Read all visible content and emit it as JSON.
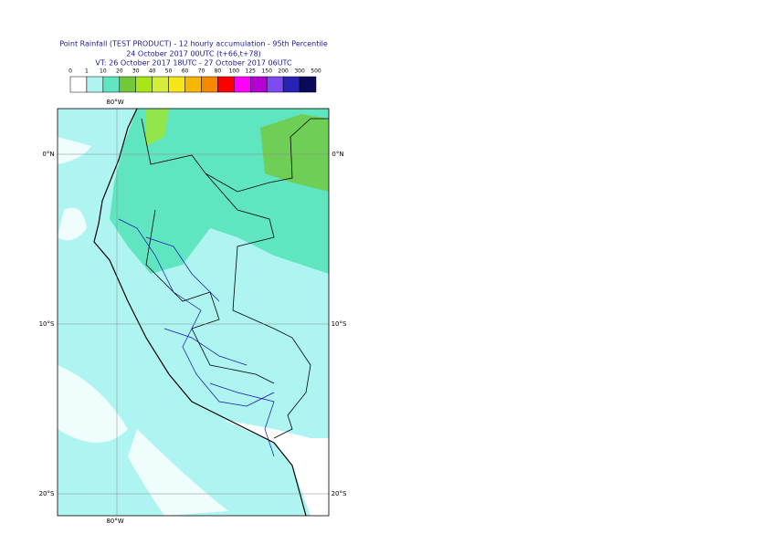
{
  "header": {
    "title": "Point Rainfall (TEST PRODUCT) - 12 hourly accumulation - 95th Percentile",
    "subtitle": "24 October 2017 00UTC (t+66,t+78)",
    "valid_time": "VT: 26 October 2017 18UTC - 27 October 2017 06UTC"
  },
  "legend": {
    "labels": [
      "0",
      "1",
      "10",
      "20",
      "30",
      "40",
      "50",
      "60",
      "70",
      "80",
      "100",
      "125",
      "150",
      "200",
      "300",
      "500"
    ],
    "colors": [
      "#ffffff",
      "#aef5f2",
      "#5fe6c0",
      "#73c83a",
      "#a8e619",
      "#d4ec3a",
      "#f5e617",
      "#f5b700",
      "#f58a00",
      "#ff0000",
      "#ff00ff",
      "#b400d2",
      "#7d4bf0",
      "#2823b4",
      "#0a0a5a"
    ]
  },
  "map": {
    "lon_labels": [
      "80°W"
    ],
    "lat_labels": [
      "0°N",
      "10°S",
      "20°S"
    ]
  }
}
